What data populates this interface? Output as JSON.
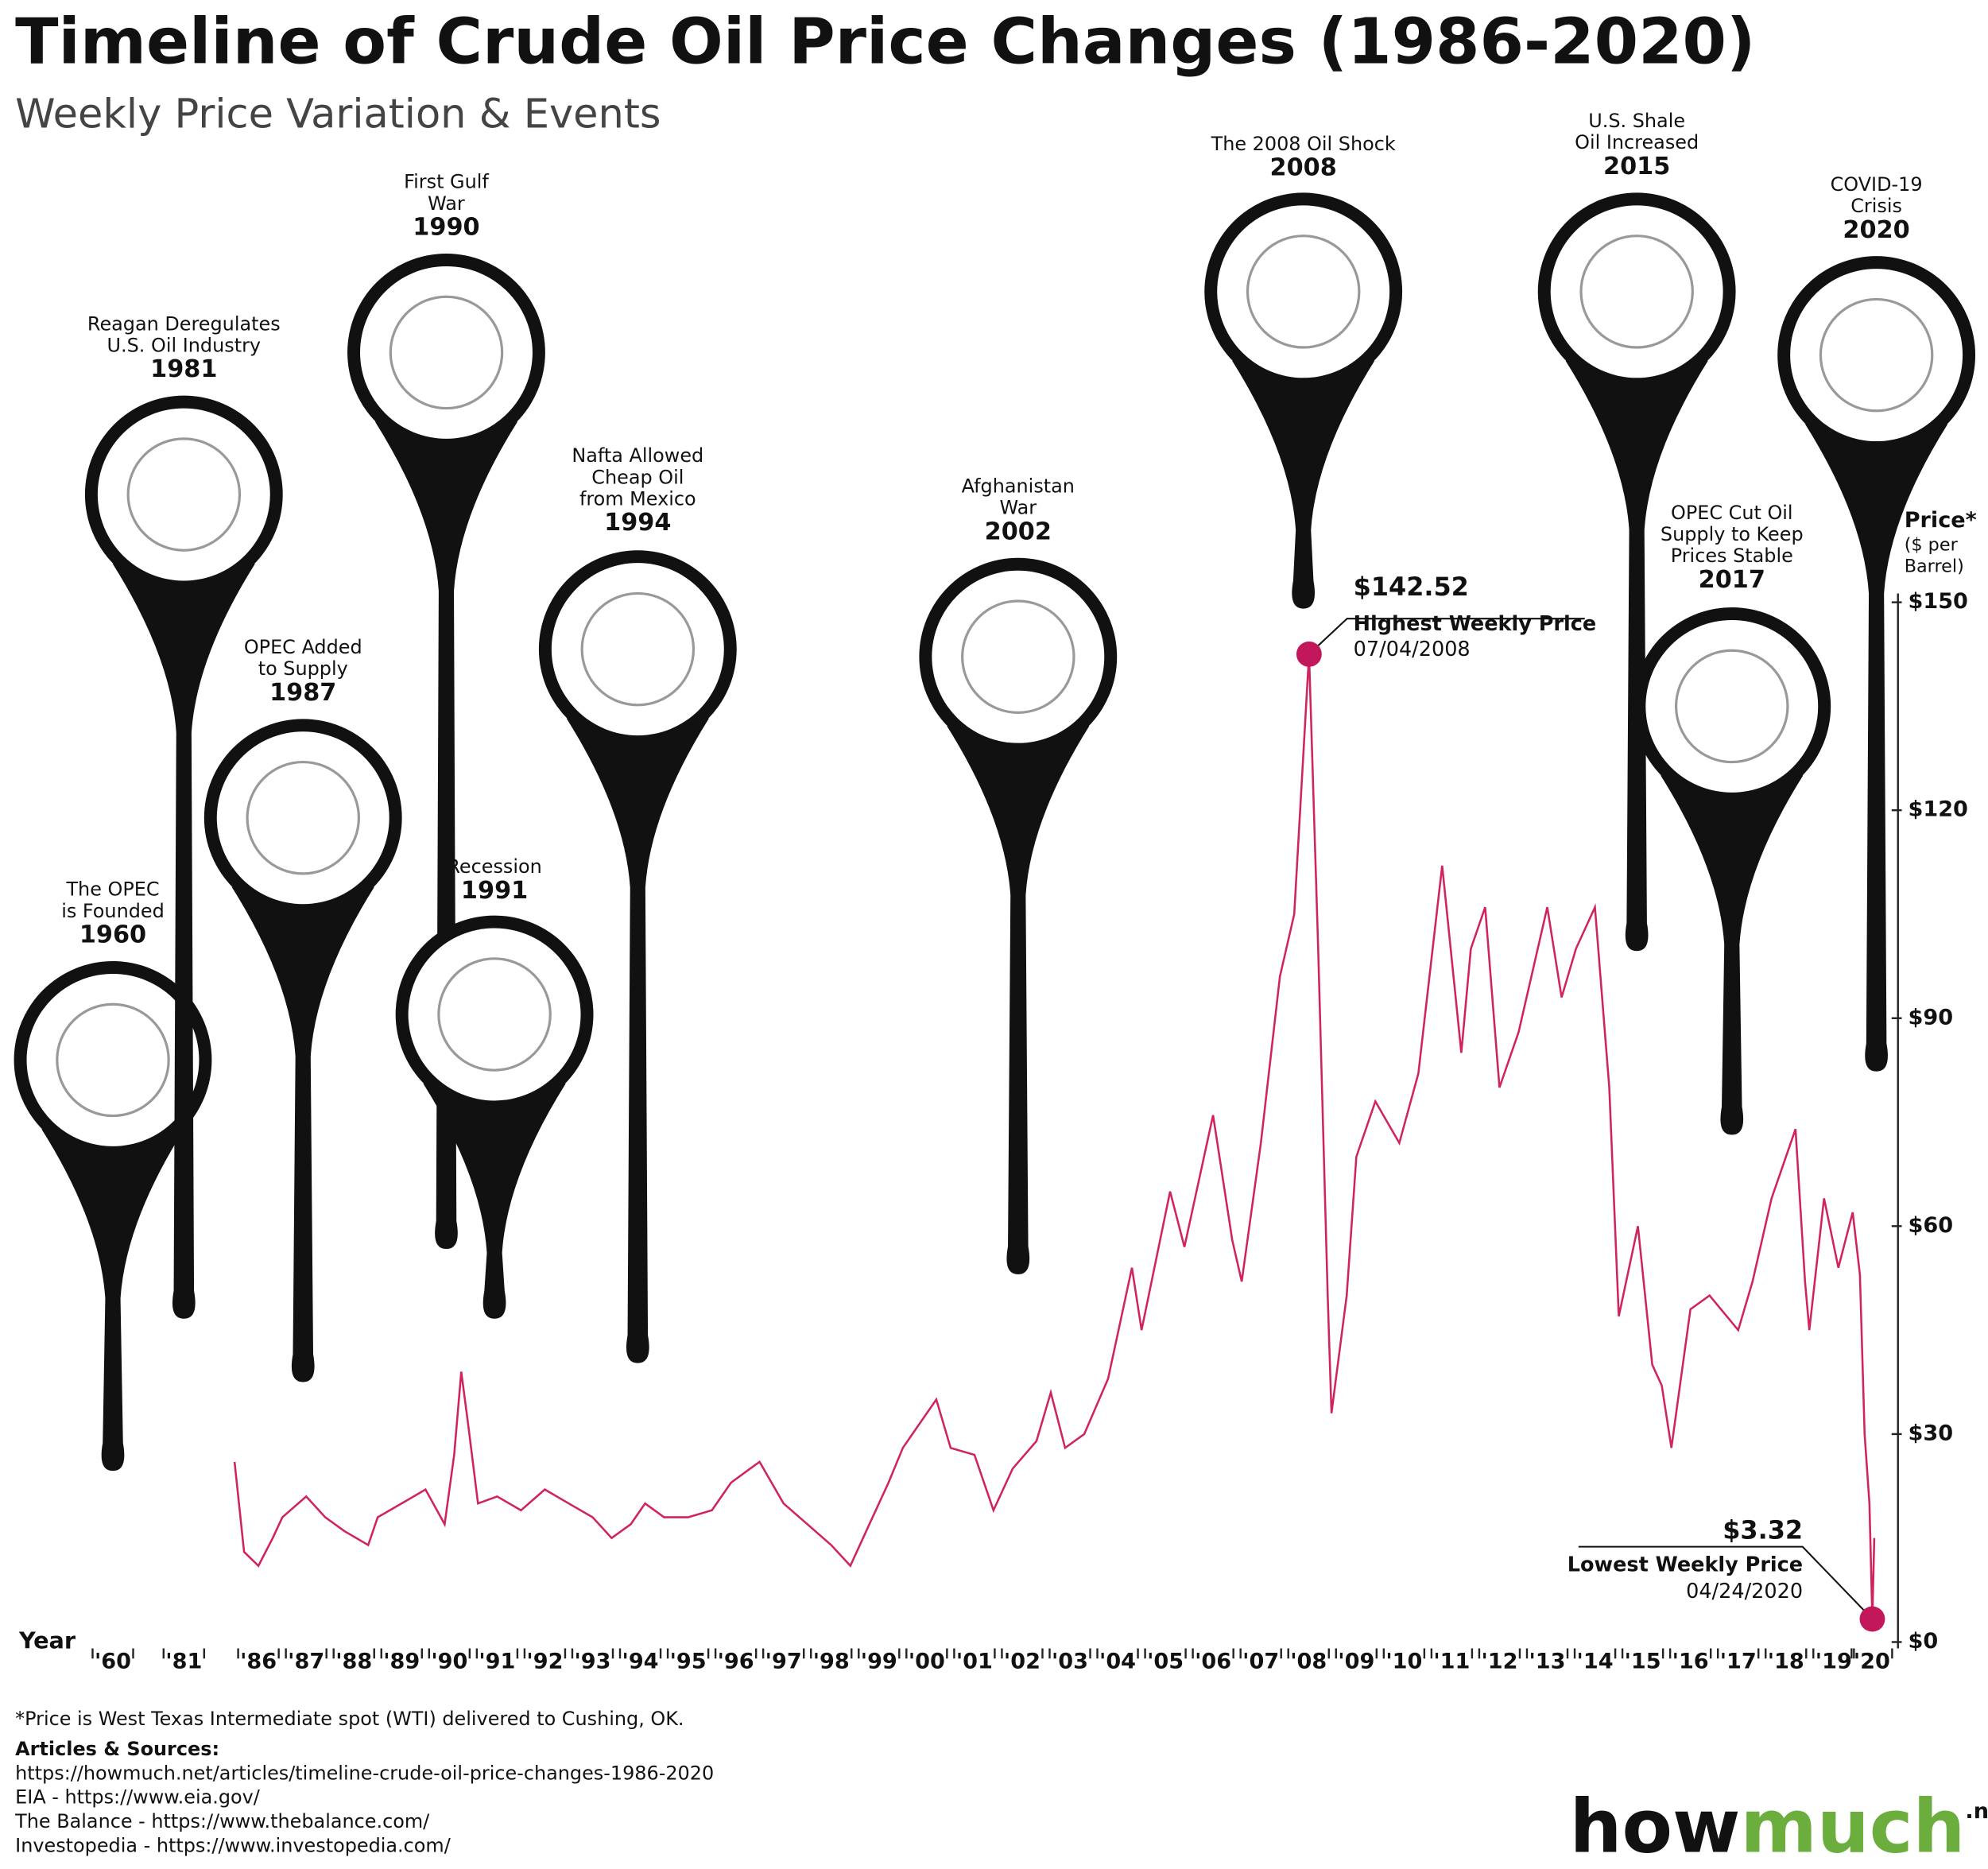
{
  "chart_data": {
    "type": "line",
    "title": "Timeline of Crude Oil Price Changes (1986-2020)",
    "subtitle": "Weekly Price Variation & Events",
    "x_label": "Year",
    "y_label": [
      "Price*",
      "($ per",
      "Barrel)"
    ],
    "ylim": [
      0,
      150
    ],
    "yticks": [
      {
        "value": 0,
        "label": "$0"
      },
      {
        "value": 30,
        "label": "$30"
      },
      {
        "value": 60,
        "label": "$60"
      },
      {
        "value": 90,
        "label": "$90"
      },
      {
        "value": 120,
        "label": "$120"
      },
      {
        "value": 150,
        "label": "$150"
      }
    ],
    "xlim": [
      1986,
      2020.6
    ],
    "xticks": [
      {
        "value": 1986.5,
        "label": "'86"
      },
      {
        "value": 1987.5,
        "label": "'87"
      },
      {
        "value": 1988.5,
        "label": "'88"
      },
      {
        "value": 1989.5,
        "label": "'89"
      },
      {
        "value": 1990.5,
        "label": "'90"
      },
      {
        "value": 1991.5,
        "label": "'91"
      },
      {
        "value": 1992.5,
        "label": "'92"
      },
      {
        "value": 1993.5,
        "label": "'93"
      },
      {
        "value": 1994.5,
        "label": "'94"
      },
      {
        "value": 1995.5,
        "label": "'95"
      },
      {
        "value": 1996.5,
        "label": "'96"
      },
      {
        "value": 1997.5,
        "label": "'97"
      },
      {
        "value": 1998.5,
        "label": "'98"
      },
      {
        "value": 1999.5,
        "label": "'99"
      },
      {
        "value": 2000.5,
        "label": "'00"
      },
      {
        "value": 2001.5,
        "label": "'01"
      },
      {
        "value": 2002.5,
        "label": "'02"
      },
      {
        "value": 2003.5,
        "label": "'03"
      },
      {
        "value": 2004.5,
        "label": "'04"
      },
      {
        "value": 2005.5,
        "label": "'05"
      },
      {
        "value": 2006.5,
        "label": "'06"
      },
      {
        "value": 2007.5,
        "label": "'07"
      },
      {
        "value": 2008.5,
        "label": "'08"
      },
      {
        "value": 2009.5,
        "label": "'09"
      },
      {
        "value": 2010.5,
        "label": "'10"
      },
      {
        "value": 2011.5,
        "label": "'11"
      },
      {
        "value": 2012.5,
        "label": "'12"
      },
      {
        "value": 2013.5,
        "label": "'13"
      },
      {
        "value": 2014.5,
        "label": "'14"
      },
      {
        "value": 2015.5,
        "label": "'15"
      },
      {
        "value": 2016.5,
        "label": "'16"
      },
      {
        "value": 2017.5,
        "label": "'17"
      },
      {
        "value": 2018.5,
        "label": "'18"
      },
      {
        "value": 2019.5,
        "label": "'19"
      },
      {
        "value": 2020.3,
        "label": "'20"
      }
    ],
    "early_ticks": [
      {
        "value": 1960,
        "label": "'60"
      },
      {
        "value": 1981,
        "label": "'81"
      }
    ],
    "series": [
      {
        "name": "WTI",
        "color": "#d0245e",
        "x": [
          1986.0,
          1986.2,
          1986.5,
          1986.8,
          1987.0,
          1987.5,
          1987.9,
          1988.3,
          1988.8,
          1989.0,
          1989.5,
          1990.0,
          1990.4,
          1990.6,
          1990.75,
          1990.9,
          1991.1,
          1991.5,
          1992.0,
          1992.5,
          1993.0,
          1993.5,
          1993.9,
          1994.3,
          1994.6,
          1995.0,
          1995.5,
          1996.0,
          1996.4,
          1996.8,
          1997.0,
          1997.5,
          1998.0,
          1998.5,
          1998.9,
          1999.3,
          1999.7,
          2000.0,
          2000.7,
          2001.0,
          2001.5,
          2001.9,
          2002.3,
          2002.8,
          2003.1,
          2003.4,
          2003.8,
          2004.3,
          2004.8,
          2005.0,
          2005.6,
          2005.9,
          2006.5,
          2006.9,
          2007.1,
          2007.5,
          2007.9,
          2008.2,
          2008.51,
          2008.7,
          2008.9,
          2008.98,
          2009.3,
          2009.5,
          2009.9,
          2010.4,
          2010.8,
          2011.3,
          2011.7,
          2011.9,
          2012.2,
          2012.5,
          2012.9,
          2013.5,
          2013.8,
          2014.1,
          2014.5,
          2014.8,
          2015.0,
          2015.4,
          2015.7,
          2015.9,
          2016.1,
          2016.5,
          2016.9,
          2017.5,
          2017.8,
          2018.2,
          2018.7,
          2018.9,
          2018.99,
          2019.3,
          2019.6,
          2019.9,
          2020.05,
          2020.15,
          2020.25,
          2020.31,
          2020.35
        ],
        "values": [
          26,
          13,
          11,
          15,
          18,
          21,
          18,
          16,
          14,
          18,
          20,
          22,
          17,
          27,
          39,
          31,
          20,
          21,
          19,
          22,
          20,
          18,
          15,
          17,
          20,
          18,
          18,
          19,
          23,
          25,
          26,
          20,
          17,
          14,
          11,
          17,
          23,
          28,
          35,
          28,
          27,
          19,
          25,
          29,
          36,
          28,
          30,
          38,
          54,
          45,
          65,
          57,
          76,
          58,
          52,
          72,
          96,
          105,
          142.52,
          100,
          50,
          33,
          50,
          70,
          78,
          72,
          82,
          112,
          85,
          100,
          106,
          80,
          88,
          106,
          93,
          100,
          106,
          80,
          47,
          60,
          40,
          37,
          28,
          48,
          50,
          45,
          52,
          64,
          74,
          52,
          45,
          64,
          54,
          62,
          53,
          30,
          20,
          3.32,
          15
        ]
      }
    ],
    "annotations": [
      {
        "value": 142.52,
        "label": "$142.52",
        "text": "Highest Weekly Price",
        "date": "07/04/2008"
      },
      {
        "value": 3.32,
        "label": "$3.32",
        "text": "Lowest Weekly Price",
        "date": "04/24/2020"
      }
    ],
    "events": [
      {
        "label": [
          "The OPEC",
          "is Founded"
        ],
        "year": "1960"
      },
      {
        "label": [
          "Reagan Deregulates",
          "U.S. Oil Industry"
        ],
        "year": "1981"
      },
      {
        "label": [
          "OPEC Added",
          "to Supply"
        ],
        "year": "1987"
      },
      {
        "label": [
          "First Gulf",
          "War"
        ],
        "year": "1990"
      },
      {
        "label": [
          "Recession"
        ],
        "year": "1991"
      },
      {
        "label": [
          "Nafta Allowed",
          "Cheap Oil",
          "from Mexico"
        ],
        "year": "1994"
      },
      {
        "label": [
          "Afghanistan",
          "War"
        ],
        "year": "2002"
      },
      {
        "label": [
          "The 2008 Oil Shock"
        ],
        "year": "2008"
      },
      {
        "label": [
          "U.S. Shale",
          "Oil Increased"
        ],
        "year": "2015"
      },
      {
        "label": [
          "OPEC Cut Oil",
          "Supply to Keep",
          "Prices Stable"
        ],
        "year": "2017"
      },
      {
        "label": [
          "COVID-19",
          "Crisis"
        ],
        "year": "2020"
      }
    ],
    "footnote": "*Price is West Texas Intermediate spot (WTI) delivered to Cushing, OK.",
    "sources_title": "Articles & Sources:",
    "sources": [
      "https://howmuch.net/articles/timeline-crude-oil-price-changes-1986-2020",
      "EIA - https://www.eia.gov/",
      "The Balance - https://www.thebalance.com/",
      "Investopedia - https://www.investopedia.com/"
    ],
    "logo": [
      "how",
      "much",
      ".net"
    ]
  }
}
